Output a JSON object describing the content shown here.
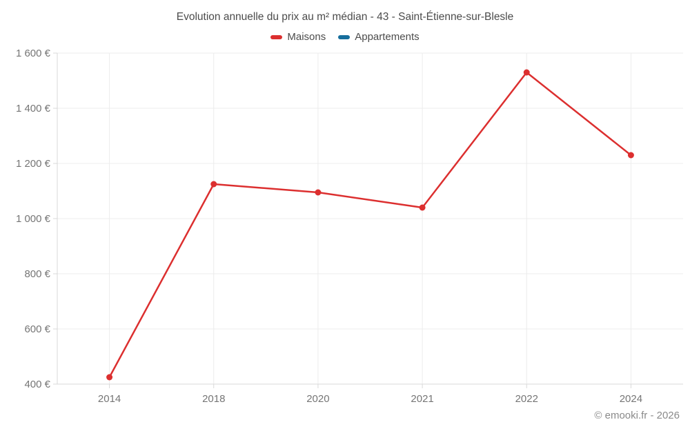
{
  "chart_data": {
    "type": "line",
    "title": "Evolution annuelle du prix au m² médian - 43 - Saint-Étienne-sur-Blesle",
    "categories": [
      "2014",
      "2018",
      "2020",
      "2021",
      "2022",
      "2024"
    ],
    "series": [
      {
        "name": "Maisons",
        "color": "#dc2f2f",
        "values": [
          425,
          1125,
          1095,
          1040,
          1530,
          1230
        ]
      },
      {
        "name": "Appartements",
        "color": "#166e9c",
        "values": [
          null,
          null,
          null,
          null,
          null,
          null
        ]
      }
    ],
    "ylim": [
      400,
      1600
    ],
    "yticks": [
      400,
      600,
      800,
      1000,
      1200,
      1400,
      1600
    ],
    "ytick_labels": [
      "400 €",
      "600 €",
      "800 €",
      "1 000 €",
      "1 200 €",
      "1 400 €",
      "1 600 €"
    ],
    "grid": true,
    "legend_position": "top",
    "xlabel": "",
    "ylabel": ""
  },
  "legend": {
    "items": [
      {
        "label": "Maisons",
        "color": "#dc2f2f"
      },
      {
        "label": "Appartements",
        "color": "#166e9c"
      }
    ]
  },
  "footer": {
    "text": "© emooki.fr - 2026"
  },
  "colors": {
    "gridline": "#ececec",
    "axis": "#d9d9d9",
    "tick_label": "#757575",
    "title_text": "#4b4b4b"
  }
}
